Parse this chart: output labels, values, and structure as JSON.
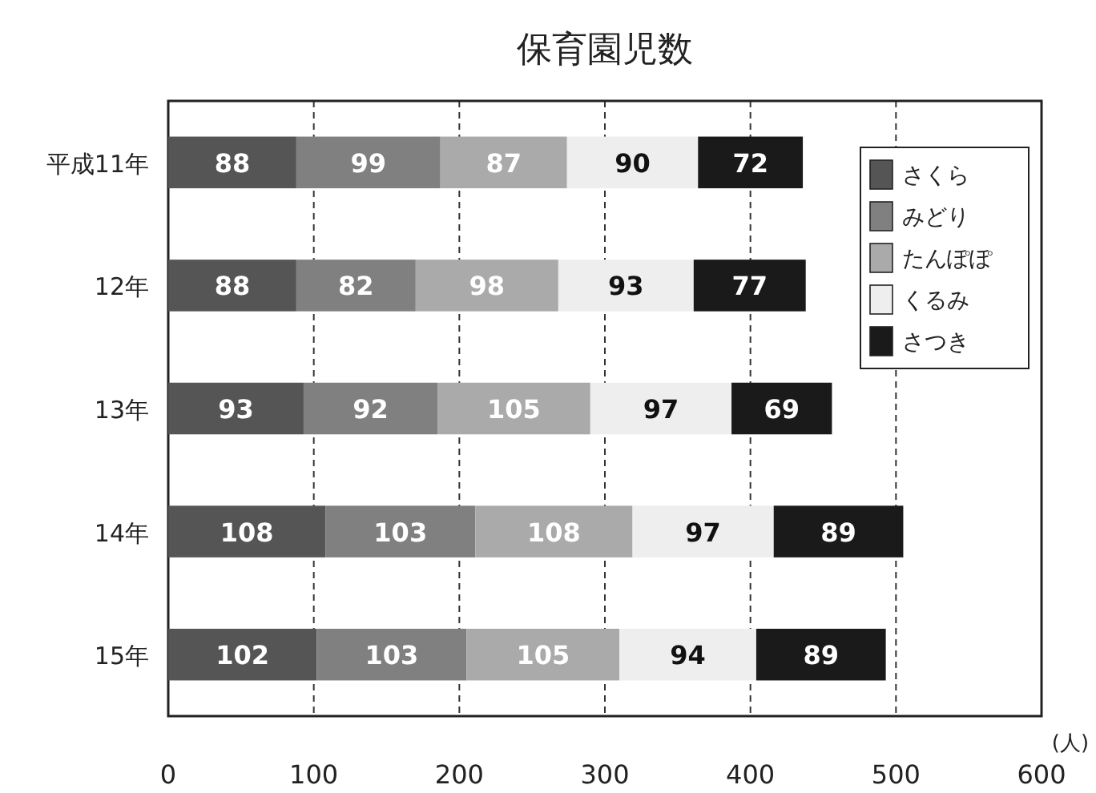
{
  "chart_data": {
    "type": "bar",
    "orientation": "horizontal",
    "stacked": true,
    "title": "保育園児数",
    "xlabel": "(人)",
    "categories": [
      "平成11年",
      "12年",
      "13年",
      "14年",
      "15年"
    ],
    "series": [
      {
        "name": "さくら",
        "color": "#555555",
        "values": [
          88,
          88,
          93,
          108,
          102
        ]
      },
      {
        "name": "みどり",
        "color": "#808080",
        "values": [
          99,
          82,
          92,
          103,
          103
        ]
      },
      {
        "name": "たんぽぽ",
        "color": "#aaaaaa",
        "values": [
          87,
          98,
          105,
          108,
          105
        ]
      },
      {
        "name": "くるみ",
        "color": "#eeeeee",
        "values": [
          90,
          93,
          97,
          97,
          94
        ]
      },
      {
        "name": "さつき",
        "color": "#1a1a1a",
        "values": [
          72,
          77,
          69,
          89,
          89
        ]
      }
    ],
    "xlim": [
      0,
      600
    ],
    "xticks": [
      0,
      100,
      200,
      300,
      400,
      500,
      600
    ],
    "grid": "x",
    "legend": "top right",
    "data_labels": true
  }
}
